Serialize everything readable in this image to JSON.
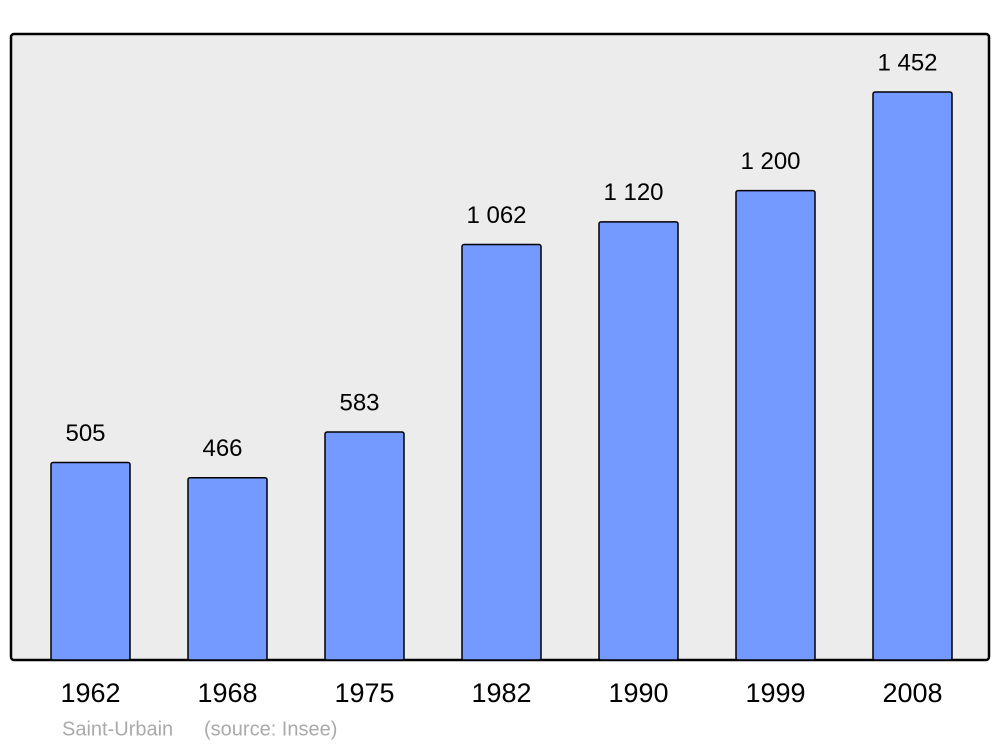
{
  "chart_data": {
    "type": "bar",
    "title": "Saint-Urbain",
    "source": "(source: Insee)",
    "categories": [
      "1962",
      "1968",
      "1975",
      "1982",
      "1990",
      "1999",
      "2008"
    ],
    "values": [
      505,
      466,
      583,
      1062,
      1120,
      1200,
      1452
    ],
    "value_labels": [
      "505",
      "466",
      "583",
      "1 062",
      "1 120",
      "1 200",
      "1 452"
    ],
    "color": "#7499ff"
  }
}
